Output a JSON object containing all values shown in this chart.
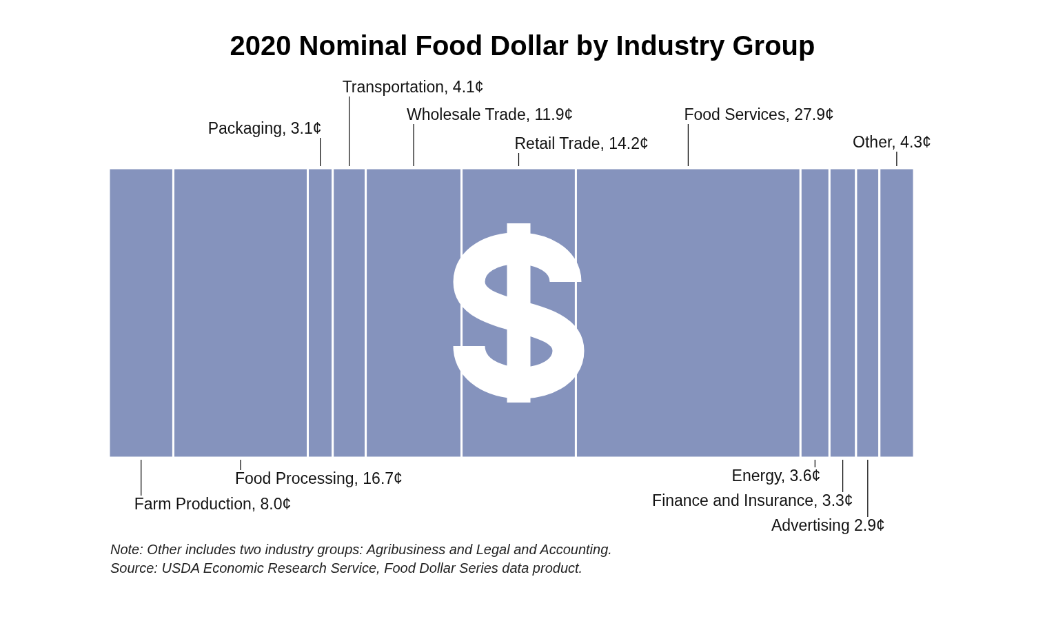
{
  "chart_data": {
    "type": "bar",
    "orientation": "horizontal",
    "stacked": true,
    "title": "2020 Nominal Food Dollar by Industry Group",
    "categories": [
      null
    ],
    "tick_labels": false,
    "series": [
      {
        "color": "#8593bd",
        "values": [
          8.0
        ],
        "value_labels": [
          "Farm Production, 8.0¢"
        ]
      },
      {
        "color": "#8593bd",
        "values": [
          16.7
        ],
        "value_labels": [
          "Food Processing, 16.7¢"
        ]
      },
      {
        "color": "#8593bd",
        "values": [
          3.1
        ],
        "value_labels": [
          "Packaging, 3.1¢"
        ]
      },
      {
        "color": "#8593bd",
        "values": [
          4.1
        ],
        "value_labels": [
          "Transportation, 4.1¢"
        ]
      },
      {
        "color": "#8593bd",
        "values": [
          11.9
        ],
        "value_labels": [
          "Wholesale Trade, 11.9¢"
        ]
      },
      {
        "color": "#8593bd",
        "values": [
          14.2
        ],
        "value_labels": [
          "Retail Trade, 14.2¢"
        ]
      },
      {
        "color": "#8593bd",
        "values": [
          27.9
        ],
        "value_labels": [
          "Food Services, 27.9¢"
        ]
      },
      {
        "color": "#8593bd",
        "values": [
          3.6
        ],
        "value_labels": [
          "Energy, 3.6¢"
        ]
      },
      {
        "color": "#8593bd",
        "values": [
          3.3
        ],
        "value_labels": [
          "Finance and Insurance, 3.3¢"
        ]
      },
      {
        "color": "#8593bd",
        "values": [
          2.9
        ],
        "value_labels": [
          "Advertising 2.9¢"
        ]
      },
      {
        "color": "#8593bd",
        "values": [
          4.3
        ],
        "value_labels": [
          "Other, 4.3¢"
        ]
      }
    ],
    "annotations": [
      "Note: Other includes two industry groups: Agribusiness and Legal and Accounting.",
      "Source: USDA Economic Research Service, Food Dollar Series data product."
    ]
  }
}
